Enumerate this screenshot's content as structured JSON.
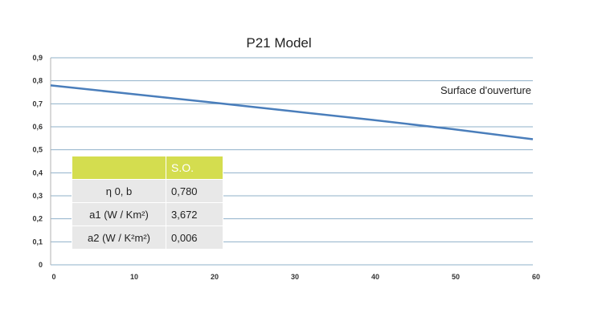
{
  "chart_data": {
    "type": "line",
    "title": "P21 Model",
    "xlabel": "",
    "ylabel": "",
    "xlim": [
      0,
      60
    ],
    "ylim": [
      0,
      0.9
    ],
    "x_ticks": [
      0,
      10,
      20,
      30,
      40,
      50,
      60
    ],
    "x_tick_labels": [
      "0",
      "10",
      "20",
      "30",
      "40",
      "50",
      "60"
    ],
    "y_ticks": [
      0,
      0.1,
      0.2,
      0.3,
      0.4,
      0.5,
      0.6,
      0.7,
      0.8,
      0.9
    ],
    "y_tick_labels": [
      "0",
      "0,1",
      "0,2",
      "0,3",
      "0,4",
      "0,5",
      "0,6",
      "0,7",
      "0,8",
      "0,9"
    ],
    "grid": "horizontal",
    "series": [
      {
        "name": "Surface d'ouverture",
        "color": "#4a7ebb",
        "x": [
          0,
          10,
          20,
          30,
          40,
          50,
          60
        ],
        "y": [
          0.78,
          0.743,
          0.706,
          0.668,
          0.63,
          0.59,
          0.546
        ]
      }
    ]
  },
  "table": {
    "header": [
      "",
      "S.O."
    ],
    "rows": [
      [
        "η 0, b",
        "0,780"
      ],
      [
        "a1 (W / Km²)",
        "3,672"
      ],
      [
        "a2 (W / K²m²)",
        "0,006"
      ]
    ]
  }
}
